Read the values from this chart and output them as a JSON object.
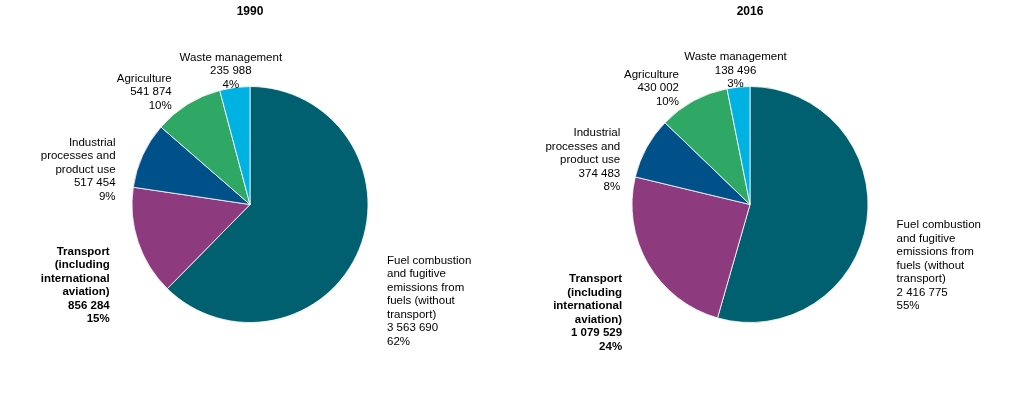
{
  "chart_data": [
    {
      "type": "pie",
      "title": "1990",
      "categories": [
        "Fuel combustion and fugitive emissions from fuels (without transport)",
        "Transport (including international aviation)",
        "Industrial processes and product use",
        "Agriculture",
        "Waste management"
      ],
      "values": [
        3563690,
        856284,
        517454,
        541874,
        235988
      ],
      "value_labels": [
        "3 563 690\n62%",
        "856 284\n15%",
        "517 454\n9%",
        "541 874\n10%",
        "235 988\n4%"
      ],
      "colors": [
        "#00606f",
        "#8e3a7e",
        "#00508a",
        "#2fa866",
        "#00b2e2"
      ]
    },
    {
      "type": "pie",
      "title": "2016",
      "categories": [
        "Fuel combustion and fugitive emissions from fuels (without transport)",
        "Transport (including international aviation)",
        "Industrial processes and product use",
        "Agriculture",
        "Waste management"
      ],
      "values": [
        2416775,
        1079529,
        374483,
        430002,
        138496
      ],
      "value_labels": [
        "2 416 775\n55%",
        "1 079 529\n24%",
        "374 483\n8%",
        "430 002\n10%",
        "138 496\n3%"
      ],
      "colors": [
        "#00606f",
        "#8e3a7e",
        "#00508a",
        "#2fa866",
        "#00b2e2"
      ]
    }
  ]
}
